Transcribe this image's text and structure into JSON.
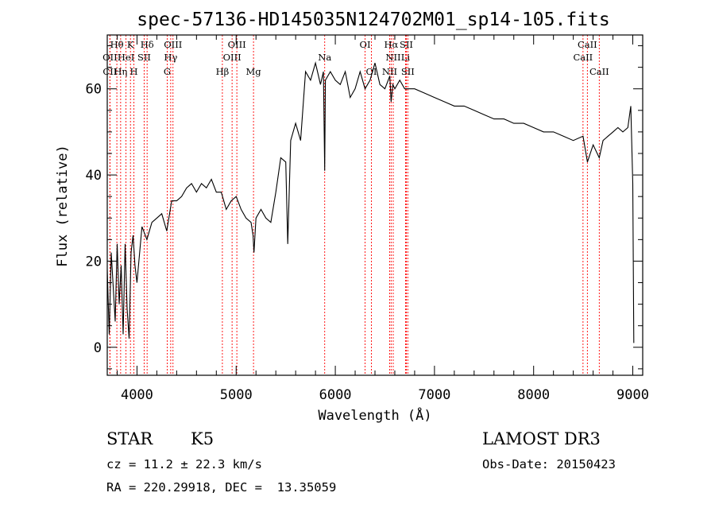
{
  "chart_data": {
    "type": "line",
    "title": "spec-57136-HD145035N124702M01_sp14-105.fits",
    "xlabel": "Wavelength (Å)",
    "ylabel": "Flux (relative)",
    "xlim": [
      3700,
      9100
    ],
    "ylim": [
      -6.5,
      72.5
    ],
    "x_ticks": [
      4000,
      5000,
      6000,
      7000,
      8000,
      9000
    ],
    "y_ticks": [
      0,
      20,
      40,
      60
    ],
    "series": [
      {
        "x": [
          3700,
          3720,
          3740,
          3760,
          3780,
          3800,
          3820,
          3840,
          3860,
          3880,
          3900,
          3920,
          3940,
          3960,
          3980,
          4000,
          4050,
          4100,
          4150,
          4200,
          4250,
          4300,
          4350,
          4400,
          4450,
          4500,
          4550,
          4600,
          4650,
          4700,
          4750,
          4800,
          4850,
          4900,
          4950,
          5000,
          5050,
          5100,
          5150,
          5170,
          5180,
          5200,
          5250,
          5300,
          5350,
          5400,
          5450,
          5500,
          5520,
          5550,
          5600,
          5650,
          5700,
          5750,
          5800,
          5850,
          5880,
          5893,
          5900,
          5950,
          6000,
          6050,
          6100,
          6150,
          6200,
          6250,
          6300,
          6350,
          6400,
          6450,
          6500,
          6550,
          6563,
          6580,
          6600,
          6650,
          6700,
          6750,
          6800,
          6900,
          7000,
          7100,
          7200,
          7300,
          7400,
          7500,
          7600,
          7700,
          7800,
          7900,
          8000,
          8100,
          8200,
          8300,
          8400,
          8498,
          8542,
          8600,
          8662,
          8700,
          8750,
          8800,
          8850,
          8900,
          8950,
          8980,
          9000,
          9010
        ],
        "y": [
          18,
          3,
          22,
          14,
          6,
          24,
          10,
          19,
          3,
          24,
          9,
          2,
          22,
          26,
          19,
          15,
          28,
          25,
          29,
          30,
          31,
          27,
          34,
          34,
          35,
          37,
          38,
          36,
          38,
          37,
          39,
          36,
          36,
          32,
          34,
          35,
          32,
          30,
          29,
          26,
          22,
          30,
          32,
          30,
          29,
          36,
          44,
          43,
          24,
          48,
          52,
          48,
          64,
          62,
          66,
          61,
          64,
          41,
          62,
          64,
          62,
          61,
          64,
          58,
          60,
          64,
          60,
          62,
          66,
          61,
          60,
          63,
          57,
          61,
          60,
          62,
          60,
          60,
          60,
          59,
          58,
          57,
          56,
          56,
          55,
          54,
          53,
          53,
          52,
          52,
          51,
          50,
          50,
          49,
          48,
          49,
          43,
          47,
          44,
          48,
          49,
          50,
          51,
          50,
          51,
          56,
          38,
          1
        ]
      }
    ],
    "spectral_lines": [
      {
        "label": "Hθ",
        "wavelength": 3797,
        "row": 1
      },
      {
        "label": "OII",
        "wavelength": 3727,
        "row": 2
      },
      {
        "label": "CII",
        "wavelength": 3727,
        "row": 3
      },
      {
        "label": "K",
        "wavelength": 3934,
        "row": 1
      },
      {
        "label": "HeI",
        "wavelength": 3889,
        "row": 2
      },
      {
        "label": "Hη",
        "wavelength": 3835,
        "row": 3
      },
      {
        "label": "SII",
        "wavelength": 4072,
        "row": 2
      },
      {
        "label": "H",
        "wavelength": 3969,
        "row": 3
      },
      {
        "label": "Hδ",
        "wavelength": 4102,
        "row": 1
      },
      {
        "label": "OIII",
        "wavelength": 4363,
        "row": 1
      },
      {
        "label": "Hγ",
        "wavelength": 4340,
        "row": 2
      },
      {
        "label": "G",
        "wavelength": 4305,
        "row": 3
      },
      {
        "label": "OIII",
        "wavelength": 5007,
        "row": 1
      },
      {
        "label": "OIII",
        "wavelength": 4959,
        "row": 2
      },
      {
        "label": "Hβ",
        "wavelength": 4861,
        "row": 3
      },
      {
        "label": "Mg",
        "wavelength": 5175,
        "row": 3
      },
      {
        "label": "Na",
        "wavelength": 5893,
        "row": 2
      },
      {
        "label": "OI",
        "wavelength": 6300,
        "row": 1
      },
      {
        "label": "OI",
        "wavelength": 6364,
        "row": 3
      },
      {
        "label": "Hα",
        "wavelength": 6563,
        "row": 1
      },
      {
        "label": "SII",
        "wavelength": 6716,
        "row": 1
      },
      {
        "label": "NII",
        "wavelength": 6584,
        "row": 2
      },
      {
        "label": "Li",
        "wavelength": 6708,
        "row": 2
      },
      {
        "label": "NII",
        "wavelength": 6548,
        "row": 3
      },
      {
        "label": "SII",
        "wavelength": 6731,
        "row": 3
      },
      {
        "label": "CaII",
        "wavelength": 8542,
        "row": 1
      },
      {
        "label": "CaII",
        "wavelength": 8498,
        "row": 2
      },
      {
        "label": "CaII",
        "wavelength": 8662,
        "row": 3
      }
    ],
    "line_color": "#ff0000",
    "series_color": "#000000",
    "grid": false
  },
  "info": {
    "class": "STAR",
    "subclass": "K5",
    "survey": "LAMOST DR3",
    "cz": "cz = 11.2 ± 22.3 km/s",
    "obs_date": "Obs-Date: 20150423",
    "radec": "RA = 220.29918, DEC =  13.35059"
  }
}
